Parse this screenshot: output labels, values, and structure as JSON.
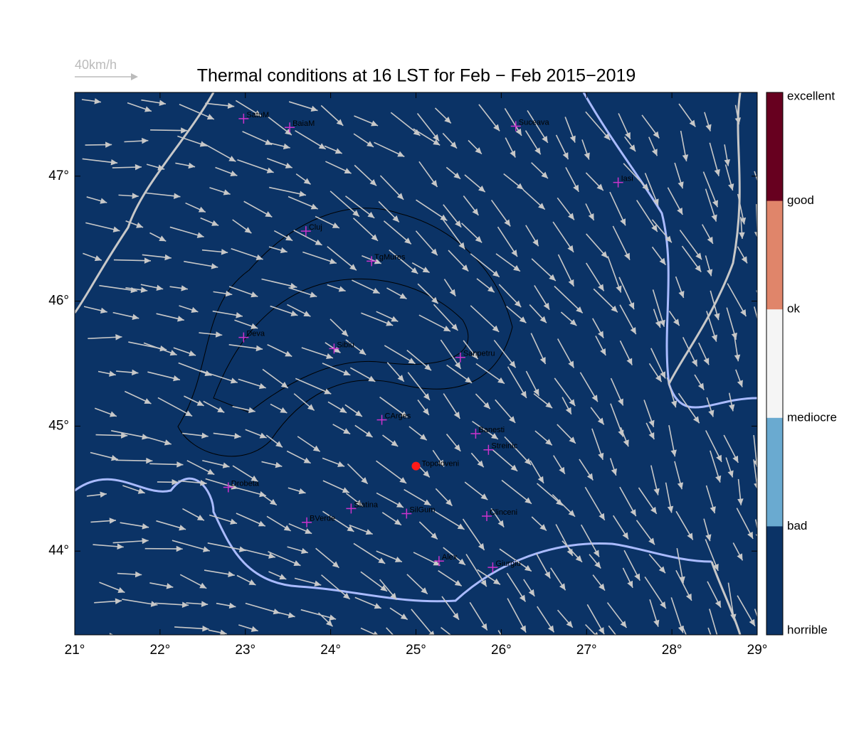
{
  "chart_data": {
    "type": "map",
    "title": "Thermal conditions at 16 LST for Feb − Feb  2015−2019",
    "wind_scale_label": "40km/h",
    "xlim": [
      21,
      29.0
    ],
    "ylim": [
      43.33,
      47.67
    ],
    "xticks": [
      {
        "value": 21,
        "label": "21°"
      },
      {
        "value": 22,
        "label": "22°"
      },
      {
        "value": 23,
        "label": "23°"
      },
      {
        "value": 24,
        "label": "24°"
      },
      {
        "value": 25,
        "label": "25°"
      },
      {
        "value": 26,
        "label": "26°"
      },
      {
        "value": 27,
        "label": "27°"
      },
      {
        "value": 28,
        "label": "28°"
      },
      {
        "value": 29,
        "label": "29°"
      }
    ],
    "yticks": [
      {
        "value": 44,
        "label": "44°"
      },
      {
        "value": 45,
        "label": "45°"
      },
      {
        "value": 46,
        "label": "46°"
      },
      {
        "value": 47,
        "label": "47°"
      }
    ],
    "background_color": "#0b3366",
    "cities": {
      "names": [
        "SatuM",
        "BaiaM",
        "Suceava",
        "Iasi",
        "Cluj",
        "TgMures",
        "Deva",
        "Sibiu",
        "Sanpetru",
        "CArges",
        "Banesti",
        "Streinic",
        "Drobeta",
        "Slatina",
        "SilGum",
        "Clinceni",
        "BVerde",
        "Alex",
        "Giurgiu"
      ],
      "lon": [
        22.98,
        23.52,
        26.17,
        27.37,
        23.71,
        24.48,
        22.98,
        24.04,
        25.52,
        24.6,
        25.7,
        25.85,
        22.8,
        24.24,
        24.89,
        25.83,
        23.72,
        25.27,
        25.9
      ],
      "lat": [
        47.46,
        47.39,
        47.4,
        46.95,
        46.56,
        46.32,
        45.71,
        45.62,
        45.55,
        45.05,
        44.94,
        44.81,
        44.51,
        44.34,
        44.3,
        44.28,
        44.23,
        43.92,
        43.87
      ],
      "color": "#cc33cc"
    },
    "site": {
      "name": "Topoloveni",
      "lon": 25.0,
      "lat": 44.68,
      "color": "#ff1a1a"
    },
    "colorbar": {
      "labels": [
        "excellent",
        "good",
        "ok",
        "mediocre",
        "bad",
        "horrible"
      ],
      "colors": [
        "#67001f",
        "#e0856a",
        "#f5f5f5",
        "#6aaad0",
        "#0b3366"
      ]
    }
  }
}
